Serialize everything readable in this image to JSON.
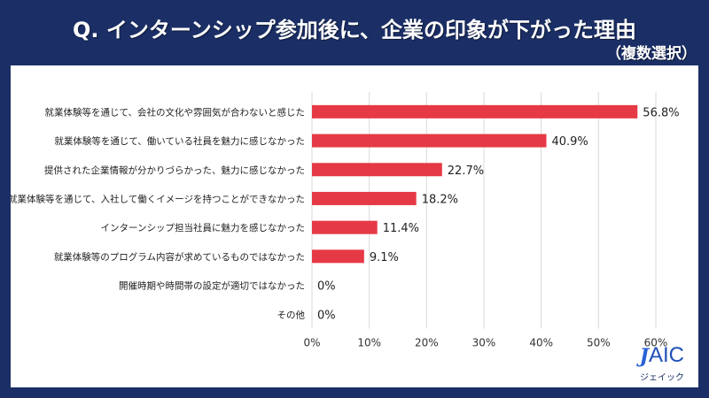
{
  "header": {
    "title": "Q. インターンシップ参加後に、企業の印象が下がった理由",
    "subtitle": "（複数選択）"
  },
  "logo": {
    "mark": "J",
    "text": "AIC",
    "kana": "ジェイック",
    "color": "#1f4fb8"
  },
  "colors": {
    "background": "#1b2f66",
    "bar": "#e63946",
    "grid": "#d9d9d9"
  },
  "chart_data": {
    "type": "bar",
    "orientation": "horizontal",
    "title": "Q. インターンシップ参加後に、企業の印象が下がった理由",
    "subtitle": "（複数選択）",
    "xlabel": "",
    "ylabel": "",
    "xlim": [
      0,
      60
    ],
    "grid": true,
    "value_suffix": "%",
    "categories": [
      "就業体験等を通じて、会社の文化や雰囲気が合わないと感じた",
      "就業体験等を通じて、働いている社員を魅力に感じなかった",
      "提供された企業情報が分かりづらかった、魅力に感じなかった",
      "就業体験等を通じて、入社して働くイメージを持つことができなかった",
      "インターンシップ担当社員に魅力を感じなかった",
      "就業体験等のプログラム内容が求めているものではなかった",
      "開催時期や時間帯の設定が適切ではなかった",
      "その他"
    ],
    "values": [
      56.8,
      40.9,
      22.7,
      18.2,
      11.4,
      9.1,
      0,
      0
    ],
    "value_labels": [
      "56.8%",
      "40.9%",
      "22.7%",
      "18.2%",
      "11.4%",
      "9.1%",
      "0%",
      "0%"
    ],
    "x_ticks": [
      0,
      10,
      20,
      30,
      40,
      50,
      60
    ],
    "x_tick_labels": [
      "0%",
      "10%",
      "20%",
      "30%",
      "40%",
      "50%",
      "60%"
    ]
  }
}
